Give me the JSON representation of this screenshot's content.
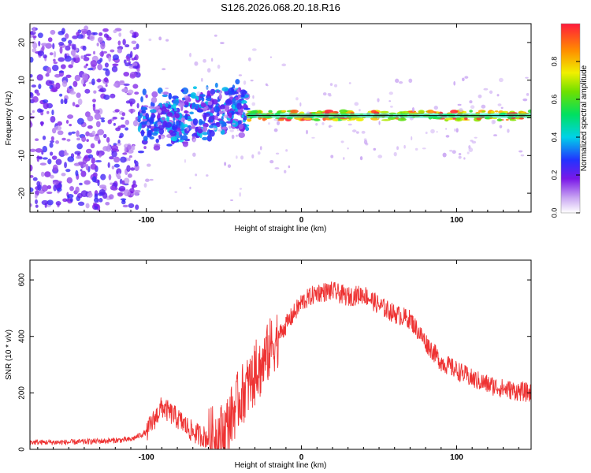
{
  "title": "S126.2026.068.20.18.R16",
  "chart_data": [
    {
      "type": "heatmap",
      "name": "spectrogram",
      "xlabel": "Height of straight line (km)",
      "ylabel": "Frequency (Hz)",
      "xlim": [
        -175,
        148
      ],
      "ylim": [
        -25,
        25
      ],
      "xticks": [
        -100,
        0,
        100
      ],
      "yticks": [
        -20,
        -10,
        0,
        10,
        20
      ],
      "colorbar": {
        "label": "Normalized spectral amplitude",
        "range": [
          0,
          1
        ],
        "ticks": [
          0.0,
          0.2,
          0.4,
          0.6,
          0.8
        ]
      },
      "description_regions": [
        {
          "x_from": -175,
          "x_to": -105,
          "freq_spread": 24,
          "amplitude": 0.15
        },
        {
          "x_from": -105,
          "x_to": -35,
          "freq_spread": 6,
          "amplitude": 0.35
        },
        {
          "x_from": -35,
          "x_to": 148,
          "freq_spread": 1,
          "amplitude": 0.9
        }
      ]
    },
    {
      "type": "line",
      "name": "snr",
      "xlabel": "Height of straight line (km)",
      "ylabel": "SNR (10 * v/v)",
      "xlim": [
        -175,
        148
      ],
      "ylim": [
        0,
        670
      ],
      "xticks": [
        -100,
        0,
        100
      ],
      "yticks": [
        0,
        200,
        400,
        600
      ],
      "color": "#ee3333",
      "series": [
        {
          "name": "SNR",
          "x": [
            -175,
            -150,
            -125,
            -110,
            -100,
            -90,
            -80,
            -70,
            -60,
            -50,
            -40,
            -30,
            -25,
            -20,
            -10,
            0,
            10,
            20,
            30,
            40,
            50,
            60,
            70,
            80,
            90,
            100,
            110,
            120,
            130,
            140,
            148
          ],
          "y": [
            25,
            25,
            30,
            35,
            60,
            150,
            110,
            60,
            40,
            60,
            180,
            260,
            300,
            360,
            440,
            520,
            555,
            560,
            540,
            550,
            510,
            480,
            460,
            380,
            310,
            280,
            250,
            230,
            215,
            205,
            200
          ]
        }
      ]
    }
  ]
}
